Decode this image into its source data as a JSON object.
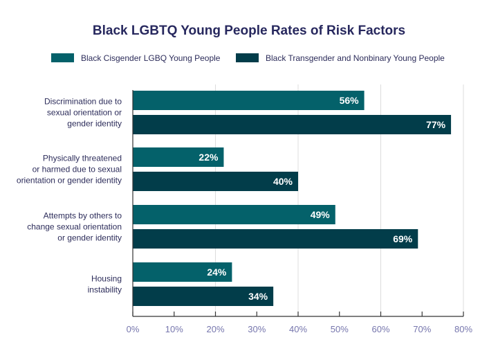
{
  "chart_data": {
    "type": "bar",
    "orientation": "horizontal",
    "title": "Black LGBTQ Young People Rates of Risk Factors",
    "categories": [
      [
        "Discrimination due to",
        "sexual orientation or",
        "gender identity"
      ],
      [
        "Physically threatened",
        "or harmed due to sexual",
        "orientation or gender identity"
      ],
      [
        "Attempts by others to",
        "change sexual orientation",
        "or gender identity"
      ],
      [
        "Housing",
        "instability"
      ]
    ],
    "series": [
      {
        "name": "Black Cisgender LGBQ Young People",
        "values": [
          56,
          22,
          49,
          24
        ],
        "color": "#04616a"
      },
      {
        "name": "Black Transgender and Nonbinary Young People",
        "values": [
          77,
          40,
          69,
          34
        ],
        "color": "#023d4a"
      }
    ],
    "xlim": [
      0,
      80
    ],
    "xticks": [
      "0%",
      "10%",
      "20%",
      "30%",
      "40%",
      "50%",
      "60%",
      "70%",
      "80%"
    ],
    "value_suffix": "%",
    "grid": "vertical at 20% intervals",
    "legend": "top"
  }
}
